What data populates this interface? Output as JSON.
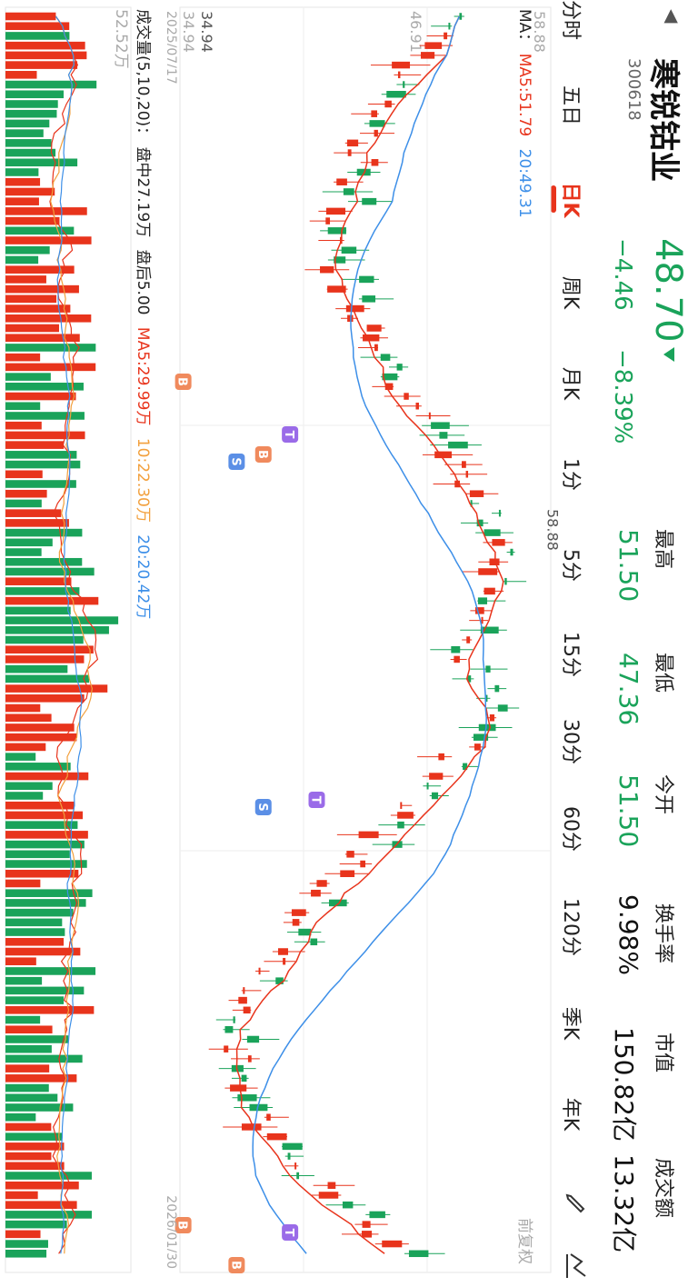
{
  "header": {
    "back_icon": "chevron-left-icon",
    "stock_name": "寒锐钴业",
    "stock_code": "300618",
    "price": "48.70",
    "arrow_icon": "arrow-down-icon",
    "change": "−4.46",
    "change_pct": "−8.39%",
    "stats": [
      {
        "label": "最高",
        "value": "51.50"
      },
      {
        "label": "最低",
        "value": "47.36"
      },
      {
        "label": "今开",
        "value": "51.50"
      },
      {
        "label": "换手率",
        "value": "9.98%"
      },
      {
        "label": "市值",
        "value": "150.82亿"
      },
      {
        "label": "成交额",
        "value": "13.32亿"
      }
    ],
    "up_color": "#e8341c",
    "down_color": "#1aa35a"
  },
  "tabs": [
    "分时",
    "五日",
    "日K",
    "周K",
    "月K",
    "1分",
    "5分",
    "15分",
    "30分",
    "60分",
    "120分",
    "季K",
    "年K"
  ],
  "active_tab": "日K",
  "toolbar": {
    "draw_icon": "pencil-icon",
    "compare_icon": "line-chart-icon"
  },
  "ma_legend": {
    "prefix": "MA：",
    "ma5": "MA5:51.79",
    "ma20": "20:49.31",
    "adjust": "前复权"
  },
  "price_axis": {
    "top": "58.88",
    "mid": "46.91",
    "bottom": "34.94"
  },
  "markers": {
    "high": "58.88",
    "low": "34.94"
  },
  "dates": {
    "start": "2025/07/17",
    "end": "2026/01/30"
  },
  "volume_legend": {
    "label": "成交量(5,10,20)：",
    "intraday": "盘中27.19万",
    "after": "盘后5.00",
    "ma5": "MA5:29.99万",
    "ma10": "10:22.30万",
    "ma20": "20:20.42万",
    "scale": "52.52万"
  },
  "colors": {
    "ma5": "#e8341c",
    "ma10": "#f2a03d",
    "ma20": "#3d8fe8",
    "signal_b": "#f08a5d",
    "signal_s": "#5b8fe6",
    "signal_t": "#9a6be8"
  },
  "signal_letters": {
    "b": "B",
    "s": "S",
    "t": "T"
  },
  "chart_data": {
    "type": "candlestick",
    "price_range": [
      34.94,
      58.88
    ],
    "session_high": 58.88,
    "session_low": 34.94,
    "start_date": "2025/07/17",
    "end_date": "2026/01/30",
    "ma_last": {
      "ma5": 51.79,
      "ma20": 49.31
    },
    "volume_ma_last": {
      "ma5": "29.99万",
      "ma10": "22.30万",
      "ma20": "20.42万"
    },
    "volume_scale": "52.52万"
  }
}
